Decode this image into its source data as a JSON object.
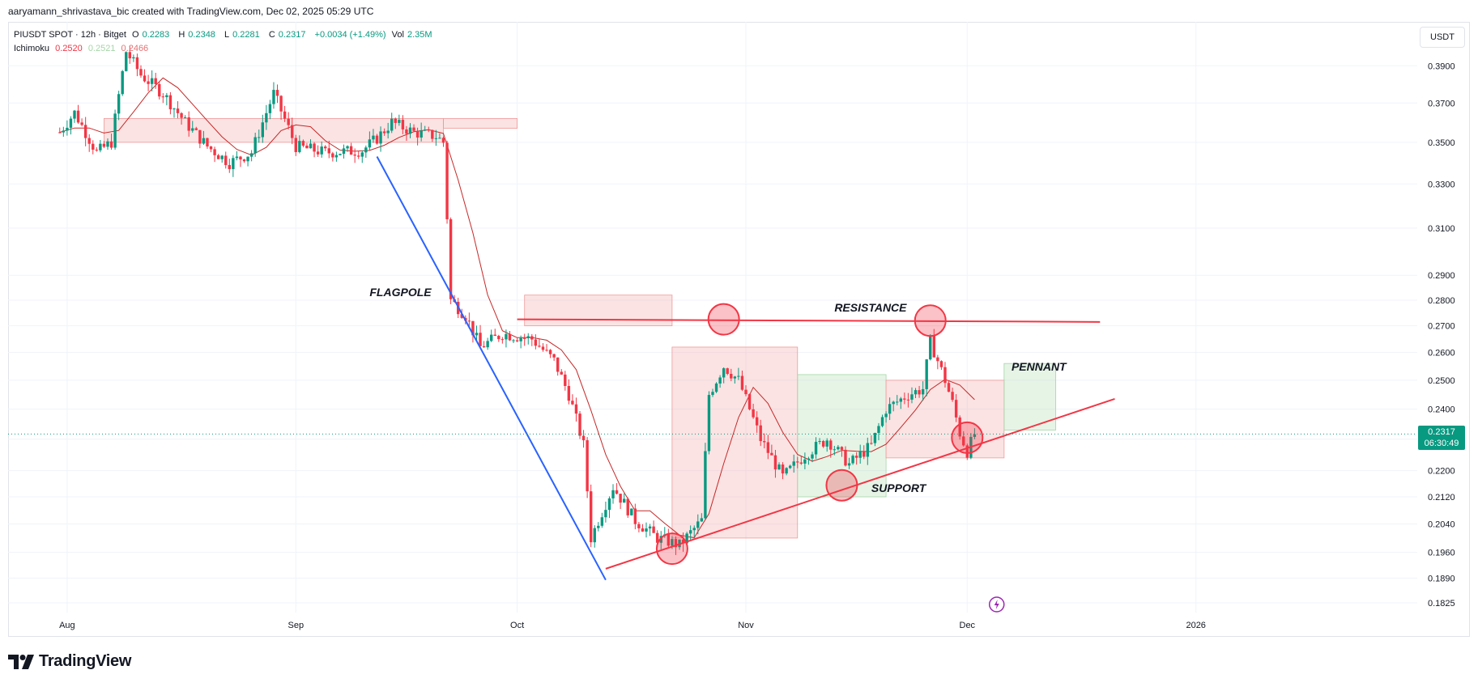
{
  "credit": "aaryamann_shrivastava_bic created with TradingView.com, Dec 02, 2025 05:29 UTC",
  "legend": {
    "symbol": "PIUSDT SPOT · 12h · Bitget",
    "open_label": "O",
    "open": "0.2283",
    "high_label": "H",
    "high": "0.2348",
    "low_label": "L",
    "low": "0.2281",
    "close_label": "C",
    "close": "0.2317",
    "change": "+0.0034 (+1.49%)",
    "vol_label": "Vol",
    "vol": "2.35M",
    "indicator_name": "Ichimoku",
    "ind_v1": "0.2520",
    "ind_v2": "0.2521",
    "ind_v3": "0.2466"
  },
  "currency": "USDT",
  "last_price": "0.2317",
  "countdown": "06:30:49",
  "brand": "TradingView",
  "colors": {
    "up": "#089981",
    "down": "#f23645",
    "flagpole": "#2962ff",
    "annotation": "#f23645",
    "kumo_bull": "#a5d6a7",
    "kumo_bear": "#ef9a9a"
  },
  "chart_data": {
    "type": "candlestick",
    "title": "",
    "y_axis": {
      "scale": "log",
      "ticks": [
        0.1825,
        0.189,
        0.196,
        0.204,
        0.212,
        0.22,
        0.23,
        0.24,
        0.25,
        0.26,
        0.27,
        0.28,
        0.29,
        0.31,
        0.33,
        0.35,
        0.37,
        0.39
      ],
      "tick_labels": [
        "0.1825",
        "0.1890",
        "0.1960",
        "0.2040",
        "0.2120",
        "0.2200",
        "0.2300",
        "0.2400",
        "0.2500",
        "0.2600",
        "0.2700",
        "0.2800",
        "0.2900",
        "0.3100",
        "0.3300",
        "0.3500",
        "0.3700",
        "0.3900"
      ],
      "range": [
        0.18,
        0.415
      ]
    },
    "x_axis": {
      "range": [
        "2025-07-24",
        "2026-01-31"
      ],
      "ticks": [
        {
          "date": "2025-08-01",
          "label": "Aug"
        },
        {
          "date": "2025-09-01",
          "label": "Sep"
        },
        {
          "date": "2025-10-01",
          "label": "Oct"
        },
        {
          "date": "2025-11-01",
          "label": "Nov"
        },
        {
          "date": "2025-12-01",
          "label": "Dec"
        },
        {
          "date": "2026-01-01",
          "label": "2026"
        }
      ]
    },
    "grid": true,
    "interval": "12h",
    "price_path": [
      [
        "2025-07-31",
        0.355
      ],
      [
        "2025-08-02",
        0.365
      ],
      [
        "2025-08-05",
        0.345
      ],
      [
        "2025-08-07",
        0.35
      ],
      [
        "2025-08-09",
        0.398
      ],
      [
        "2025-08-11",
        0.385
      ],
      [
        "2025-08-14",
        0.375
      ],
      [
        "2025-08-17",
        0.36
      ],
      [
        "2025-08-20",
        0.348
      ],
      [
        "2025-08-23",
        0.34
      ],
      [
        "2025-08-26",
        0.345
      ],
      [
        "2025-08-29",
        0.375
      ],
      [
        "2025-09-01",
        0.348
      ],
      [
        "2025-09-05",
        0.345
      ],
      [
        "2025-09-10",
        0.346
      ],
      [
        "2025-09-12",
        0.352
      ],
      [
        "2025-09-14",
        0.36
      ],
      [
        "2025-09-17",
        0.355
      ],
      [
        "2025-09-20",
        0.353
      ],
      [
        "2025-09-21",
        0.35
      ],
      [
        "2025-09-22",
        0.28
      ],
      [
        "2025-09-24",
        0.274
      ],
      [
        "2025-09-26",
        0.262
      ],
      [
        "2025-09-29",
        0.267
      ],
      [
        "2025-10-03",
        0.265
      ],
      [
        "2025-10-06",
        0.257
      ],
      [
        "2025-10-08",
        0.245
      ],
      [
        "2025-10-10",
        0.228
      ],
      [
        "2025-10-11",
        0.2
      ],
      [
        "2025-10-14",
        0.215
      ],
      [
        "2025-10-17",
        0.205
      ],
      [
        "2025-10-20",
        0.2
      ],
      [
        "2025-10-23",
        0.198
      ],
      [
        "2025-10-26",
        0.205
      ],
      [
        "2025-10-27",
        0.245
      ],
      [
        "2025-10-29",
        0.255
      ],
      [
        "2025-10-31",
        0.25
      ],
      [
        "2025-11-03",
        0.23
      ],
      [
        "2025-11-06",
        0.218
      ],
      [
        "2025-11-09",
        0.225
      ],
      [
        "2025-11-12",
        0.23
      ],
      [
        "2025-11-15",
        0.222
      ],
      [
        "2025-11-18",
        0.228
      ],
      [
        "2025-11-20",
        0.24
      ],
      [
        "2025-11-23",
        0.245
      ],
      [
        "2025-11-25",
        0.247
      ],
      [
        "2025-11-26",
        0.264
      ],
      [
        "2025-11-28",
        0.25
      ],
      [
        "2025-11-29",
        0.242
      ],
      [
        "2025-11-30",
        0.232
      ],
      [
        "2025-12-01",
        0.226
      ],
      [
        "2025-12-02",
        0.2317
      ]
    ],
    "kumo": [
      {
        "from": "2025-08-06",
        "to": "2025-09-21",
        "top": 0.362,
        "bottom": 0.35,
        "sentiment": "bearish"
      },
      {
        "from": "2025-09-21",
        "to": "2025-10-01",
        "top": 0.362,
        "bottom": 0.357,
        "sentiment": "bearish"
      },
      {
        "from": "2025-10-02",
        "to": "2025-10-22",
        "top": 0.282,
        "bottom": 0.27,
        "sentiment": "bearish"
      },
      {
        "from": "2025-10-22",
        "to": "2025-11-08",
        "top": 0.262,
        "bottom": 0.2,
        "sentiment": "bearish"
      },
      {
        "from": "2025-11-08",
        "to": "2025-11-20",
        "top": 0.252,
        "bottom": 0.212,
        "sentiment": "bullish"
      },
      {
        "from": "2025-11-20",
        "to": "2025-12-06",
        "top": 0.25,
        "bottom": 0.224,
        "sentiment": "bearish"
      },
      {
        "from": "2025-12-06",
        "to": "2025-12-13",
        "top": 0.256,
        "bottom": 0.233,
        "sentiment": "bullish"
      }
    ],
    "annotations": {
      "texts": [
        {
          "label": "FLAGPOLE",
          "date": "2025-09-11",
          "price": 0.2815
        },
        {
          "label": "RESISTANCE",
          "date": "2025-11-13",
          "price": 0.2755
        },
        {
          "label": "PENNANT",
          "date": "2025-12-07",
          "price": 0.2535
        },
        {
          "label": "SUPPORT",
          "date": "2025-11-18",
          "price": 0.2135
        }
      ],
      "lines": [
        {
          "name": "flagpole-line",
          "from": [
            "2025-09-12",
            0.343
          ],
          "to": [
            "2025-10-13",
            0.1885
          ],
          "color": "#2962ff"
        },
        {
          "name": "resistance-line",
          "from": [
            "2025-10-01",
            0.2725
          ],
          "to": [
            "2025-12-19",
            0.2715
          ],
          "color": "#f23645"
        },
        {
          "name": "support-line",
          "from": [
            "2025-10-13",
            0.1915
          ],
          "to": [
            "2025-12-21",
            0.2435
          ],
          "color": "#f23645"
        }
      ],
      "circles": [
        {
          "date": "2025-10-22",
          "price": 0.197
        },
        {
          "date": "2025-10-29",
          "price": 0.2725
        },
        {
          "date": "2025-11-14",
          "price": 0.2155
        },
        {
          "date": "2025-11-26",
          "price": 0.272
        },
        {
          "date": "2025-12-01",
          "price": 0.2305
        }
      ]
    },
    "last_price_line": 0.2317
  }
}
